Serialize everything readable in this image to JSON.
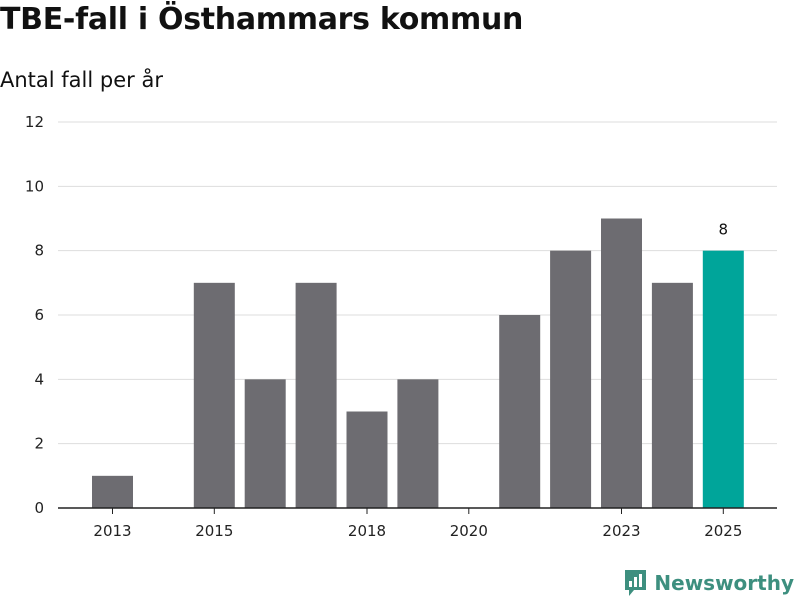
{
  "header": {
    "title": "TBE-fall i Östhammars kommun",
    "subtitle": "Antal fall per år"
  },
  "brand": {
    "name": "Newsworthy",
    "color": "#3d8f7f",
    "icon": "newsworthy-logo-icon"
  },
  "colors": {
    "bar": "#6d6c71",
    "highlight": "#00a59a"
  },
  "chart_data": {
    "type": "bar",
    "title": "TBE-fall i Östhammars kommun",
    "subtitle": "Antal fall per år",
    "xlabel": "",
    "ylabel": "Antal fall per år",
    "categories": [
      "2013",
      "2014",
      "2015",
      "2016",
      "2017",
      "2018",
      "2019",
      "2020",
      "2021",
      "2022",
      "2023",
      "2024",
      "2025"
    ],
    "values": [
      1,
      0,
      7,
      4,
      7,
      3,
      4,
      0,
      6,
      8,
      9,
      7,
      8
    ],
    "highlight_index": 12,
    "data_labels": [
      {
        "index": 12,
        "text": "8"
      }
    ],
    "x_tick_labels": [
      "2013",
      "2015",
      "2018",
      "2020",
      "2023",
      "2025"
    ],
    "yticks": [
      0,
      2,
      4,
      6,
      8,
      10,
      12
    ],
    "ylim": [
      0,
      12
    ],
    "grid": true
  }
}
